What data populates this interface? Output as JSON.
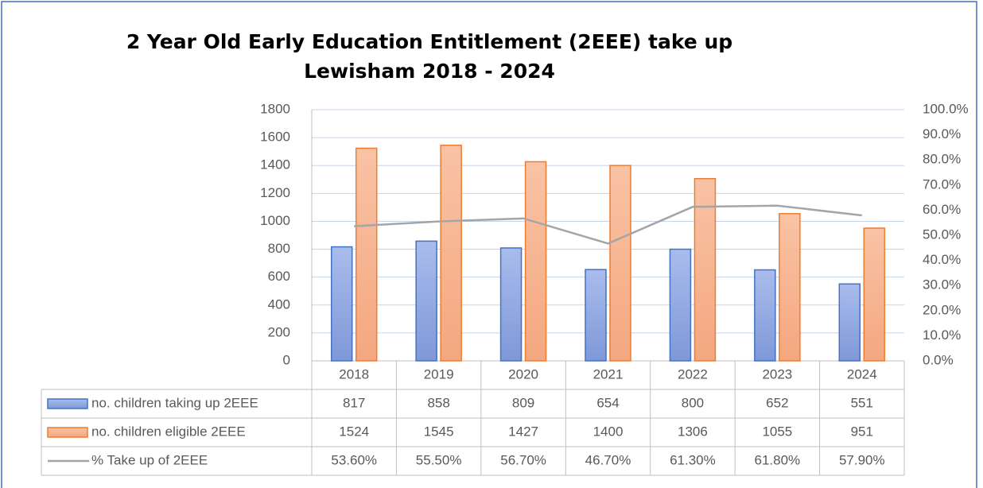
{
  "chart_data": {
    "type": "bar",
    "title": [
      "2 Year Old Early Education Entitlement (2EEE) take up",
      "Lewisham 2018 - 2024"
    ],
    "categories": [
      "2018",
      "2019",
      "2020",
      "2021",
      "2022",
      "2023",
      "2024"
    ],
    "series": [
      {
        "name": "no. children taking up 2EEE",
        "type": "bar",
        "color": "#4472c4",
        "fill": "#93aae2",
        "values": [
          817,
          858,
          809,
          654,
          800,
          652,
          551
        ]
      },
      {
        "name": "no. children eligible 2EEE",
        "type": "bar",
        "color": "#ed7d31",
        "fill": "#f6b596",
        "values": [
          1524,
          1545,
          1427,
          1400,
          1306,
          1055,
          951
        ]
      },
      {
        "name": "% Take up of 2EEE",
        "type": "line",
        "axis": "y2",
        "color": "#a5a5a5",
        "values": [
          53.6,
          55.5,
          56.7,
          46.7,
          61.3,
          61.8,
          57.9
        ],
        "value_labels": [
          "53.60%",
          "55.50%",
          "56.70%",
          "46.70%",
          "61.30%",
          "61.80%",
          "57.90%"
        ]
      }
    ],
    "ylim": [
      0,
      1800
    ],
    "yticks": [
      0,
      200,
      400,
      600,
      800,
      1000,
      1200,
      1400,
      1600,
      1800
    ],
    "y2lim": [
      0,
      100
    ],
    "y2ticks": [
      {
        "value": 0,
        "label": "0.0%"
      },
      {
        "value": 10,
        "label": "10.0%"
      },
      {
        "value": 20,
        "label": "20.0%"
      },
      {
        "value": 30,
        "label": "30.0%"
      },
      {
        "value": 40,
        "label": "40.0%"
      },
      {
        "value": 50,
        "label": "50.0%"
      },
      {
        "value": 60,
        "label": "60.0%"
      },
      {
        "value": 70,
        "label": "70.0%"
      },
      {
        "value": 80,
        "label": "80.0%"
      },
      {
        "value": 90,
        "label": "90.0%"
      },
      {
        "value": 100,
        "label": "100.0%"
      }
    ],
    "grid": true,
    "data_table": true
  }
}
